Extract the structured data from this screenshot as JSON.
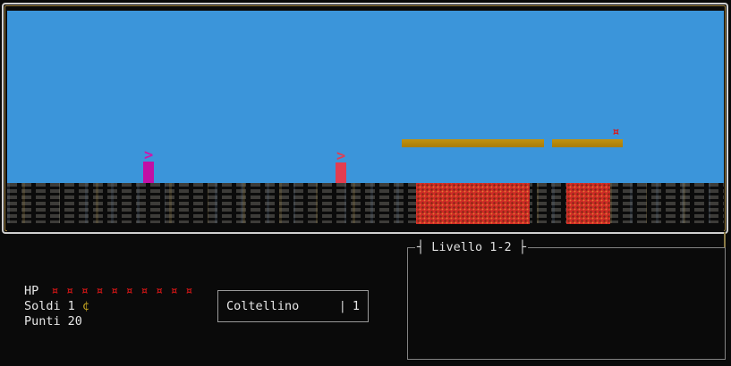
{
  "game": {
    "arrow_glyph": ">",
    "enemy_glyph": "¤",
    "colors": {
      "sky": "#3b95da",
      "ground_dash": "#3d3c39",
      "platform_gold": "#b8860b",
      "block_red": "#ce2b26",
      "pillar_magenta": "#c110a5",
      "pillar_red": "#e23d51",
      "enemy_red": "#e01212",
      "frame_outer": "#cfcfcf",
      "frame_inner": "#9a7d3c"
    }
  },
  "hud": {
    "hp": {
      "label": "HP",
      "hearts": "¤ ¤ ¤ ¤ ¤ ¤ ¤ ¤ ¤ ¤",
      "hearts_count": 10,
      "color": "#cc1616"
    },
    "money": {
      "label": "Soldi",
      "value": "1",
      "symbol": "¢",
      "symbol_color": "#c0a020"
    },
    "points": {
      "label": "Punti",
      "value": "20"
    },
    "weapon": {
      "name": "Coltellino",
      "divider": "|",
      "count": "1"
    },
    "level": {
      "left_tick": "┤",
      "title": "Livello 1-2",
      "right_tick": "├"
    }
  }
}
